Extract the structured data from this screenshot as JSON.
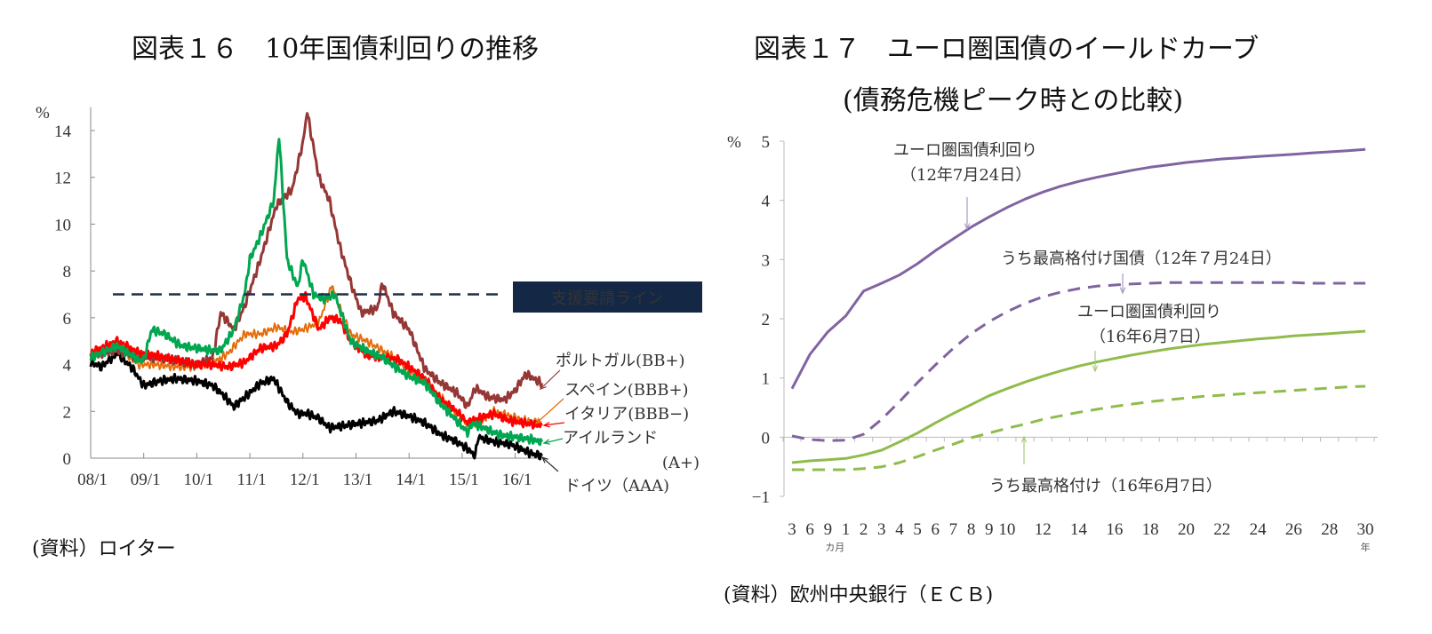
{
  "left_figure": {
    "title": "図表１６　10年国債利回りの推移",
    "source": "(資料）ロイター"
  },
  "right_figure": {
    "title_line1": "図表１７　ユーロ圏国債のイールドカーブ",
    "title_line2": "(債務危機ピーク時との比較)",
    "source": "(資料）欧州中央銀行（ＥＣＢ)"
  },
  "chart_data": [
    {
      "id": "fig16",
      "type": "line",
      "title": "図表１６　10年国債利回りの推移",
      "ylabel": "%",
      "ylim": [
        0,
        15
      ],
      "yticks": [
        0,
        2,
        4,
        6,
        8,
        10,
        12,
        14
      ],
      "xlim": [
        2008.0,
        2016.8
      ],
      "xticks": [
        2008,
        2009,
        2010,
        2011,
        2012,
        2013,
        2014,
        2015,
        2016
      ],
      "xtick_labels": [
        "08/1",
        "09/1",
        "10/1",
        "11/1",
        "12/1",
        "13/1",
        "14/1",
        "15/1",
        "16/1"
      ],
      "grid": false,
      "reference_line": {
        "value": 7,
        "label": "支援要請ライン",
        "style": "dashed",
        "color": "#1f3050"
      },
      "series": [
        {
          "name": "ポルトガル(BB+)",
          "color": "#953735",
          "x": [
            2008.0,
            2008.5,
            2008.9,
            2009.2,
            2009.6,
            2010.0,
            2010.3,
            2010.45,
            2010.7,
            2010.9,
            2011.2,
            2011.5,
            2011.8,
            2012.0,
            2012.08,
            2012.3,
            2012.5,
            2012.7,
            2012.9,
            2013.1,
            2013.4,
            2013.5,
            2013.7,
            2014.0,
            2014.3,
            2014.6,
            2014.9,
            2015.1,
            2015.25,
            2015.5,
            2015.8,
            2016.0,
            2016.2,
            2016.5
          ],
          "values": [
            4.4,
            4.6,
            4.3,
            4.3,
            4.2,
            4.0,
            4.3,
            6.2,
            5.5,
            6.5,
            8.5,
            10.8,
            11.5,
            13.5,
            14.8,
            12.0,
            11.0,
            9.0,
            7.5,
            6.2,
            6.4,
            7.5,
            6.2,
            5.5,
            3.8,
            3.2,
            2.8,
            2.2,
            3.0,
            2.6,
            2.5,
            2.9,
            3.6,
            3.2
          ]
        },
        {
          "name": "スペイン(BBB+)",
          "color": "#e46c0a",
          "x": [
            2008.0,
            2008.5,
            2008.9,
            2009.2,
            2009.6,
            2010.0,
            2010.4,
            2010.6,
            2010.9,
            2011.2,
            2011.5,
            2011.8,
            2012.0,
            2012.3,
            2012.55,
            2012.7,
            2012.9,
            2013.2,
            2013.5,
            2013.8,
            2014.0,
            2014.3,
            2014.6,
            2014.9,
            2015.1,
            2015.3,
            2015.6,
            2015.9,
            2016.2,
            2016.5
          ],
          "values": [
            4.3,
            4.8,
            4.0,
            4.0,
            3.9,
            3.9,
            4.2,
            4.5,
            5.3,
            5.3,
            5.6,
            5.4,
            5.5,
            5.8,
            7.4,
            6.4,
            5.3,
            5.0,
            4.6,
            4.2,
            3.7,
            3.3,
            2.6,
            1.9,
            1.5,
            1.5,
            2.0,
            1.8,
            1.6,
            1.5
          ]
        },
        {
          "name": "イタリア(BBB−)",
          "color": "#ff0000",
          "x": [
            2008.0,
            2008.5,
            2008.9,
            2009.2,
            2009.6,
            2010.0,
            2010.3,
            2010.6,
            2010.9,
            2011.2,
            2011.5,
            2011.7,
            2011.9,
            2012.05,
            2012.3,
            2012.5,
            2012.7,
            2012.9,
            2013.2,
            2013.5,
            2013.8,
            2014.0,
            2014.3,
            2014.6,
            2014.9,
            2015.1,
            2015.3,
            2015.6,
            2015.9,
            2016.2,
            2016.5
          ],
          "values": [
            4.5,
            5.0,
            4.5,
            4.4,
            4.2,
            4.0,
            4.0,
            3.9,
            4.1,
            4.7,
            4.8,
            5.3,
            6.8,
            6.9,
            5.5,
            6.0,
            5.9,
            5.0,
            4.4,
            4.3,
            4.2,
            3.9,
            3.4,
            2.5,
            2.0,
            1.5,
            1.7,
            1.9,
            1.6,
            1.5,
            1.4
          ]
        },
        {
          "name": "アイルランド(A+)",
          "color": "#00a650",
          "x": [
            2008.0,
            2008.5,
            2008.9,
            2009.0,
            2009.15,
            2009.4,
            2009.7,
            2010.0,
            2010.3,
            2010.45,
            2010.7,
            2010.9,
            2011.0,
            2011.2,
            2011.45,
            2011.55,
            2011.7,
            2011.9,
            2012.0,
            2012.2,
            2012.4,
            2012.6,
            2012.9,
            2013.2,
            2013.5,
            2013.8,
            2014.0,
            2014.3,
            2014.6,
            2014.9,
            2015.1,
            2015.2,
            2015.4,
            2015.7,
            2016.0,
            2016.3,
            2016.5
          ],
          "values": [
            4.3,
            4.8,
            4.2,
            4.2,
            5.5,
            5.3,
            4.8,
            4.7,
            4.6,
            4.6,
            5.5,
            7.0,
            8.5,
            9.5,
            11.0,
            13.8,
            8.5,
            7.3,
            8.5,
            7.0,
            6.8,
            7.0,
            5.0,
            4.6,
            4.3,
            3.8,
            3.5,
            3.2,
            2.3,
            1.6,
            1.1,
            1.5,
            1.3,
            1.0,
            0.9,
            0.8,
            0.7
          ]
        },
        {
          "name": "ドイツ(AAA)",
          "color": "#000000",
          "x": [
            2008.0,
            2008.2,
            2008.5,
            2008.8,
            2009.0,
            2009.3,
            2009.6,
            2010.0,
            2010.3,
            2010.5,
            2010.7,
            2010.9,
            2011.2,
            2011.45,
            2011.7,
            2011.9,
            2012.1,
            2012.3,
            2012.5,
            2012.8,
            2013.1,
            2013.4,
            2013.7,
            2014.0,
            2014.3,
            2014.6,
            2014.9,
            2015.1,
            2015.25,
            2015.3,
            2015.6,
            2015.9,
            2016.1,
            2016.3,
            2016.5
          ],
          "values": [
            4.1,
            3.9,
            4.5,
            3.8,
            3.1,
            3.3,
            3.4,
            3.3,
            3.1,
            2.7,
            2.2,
            2.6,
            3.2,
            3.4,
            2.4,
            1.9,
            1.9,
            1.7,
            1.3,
            1.4,
            1.5,
            1.6,
            2.0,
            1.8,
            1.5,
            1.0,
            0.7,
            0.4,
            0.1,
            0.9,
            0.7,
            0.6,
            0.4,
            0.2,
            0.1
          ]
        }
      ],
      "labels": [
        {
          "series": "ポルトガル(BB+)",
          "text": "ポルトガル(BB+)"
        },
        {
          "series": "スペイン(BBB+)",
          "text": "スペイン(BBB+)"
        },
        {
          "series": "イタリア(BBB−)",
          "text": "イタリア(BBB−)"
        },
        {
          "series": "アイルランド(A+)",
          "text": "アイルランド",
          "text2": "(A+)"
        },
        {
          "series": "ドイツ(AAA)",
          "text": "ドイツ（AAA)"
        }
      ]
    },
    {
      "id": "fig17",
      "type": "line",
      "title": "図表１７　ユーロ圏国債のイールドカーブ（債務危機ピーク時との比較）",
      "ylabel": "%",
      "ylim": [
        -1,
        5
      ],
      "yticks": [
        -1,
        0,
        1,
        2,
        3,
        4,
        5
      ],
      "grid": false,
      "categories": [
        "3カ月",
        "6カ月",
        "9カ月",
        "1",
        "2",
        "3",
        "4",
        "5",
        "6",
        "7",
        "8",
        "9",
        "10",
        "11",
        "12",
        "13",
        "14",
        "15",
        "16",
        "17",
        "18",
        "19",
        "20",
        "21",
        "22",
        "23",
        "24",
        "25",
        "26",
        "27",
        "28",
        "29",
        "30"
      ],
      "tick_labels": [
        "3",
        "6",
        "9",
        "1",
        "2",
        "3",
        "4",
        "5",
        "6",
        "7",
        "8",
        "9",
        "10",
        "",
        "12",
        "",
        "14",
        "",
        "16",
        "",
        "18",
        "",
        "20",
        "",
        "22",
        "",
        "24",
        "",
        "26",
        "",
        "28",
        "",
        "30"
      ],
      "x_unit_months": "カ月",
      "x_unit_years": "年",
      "series": [
        {
          "name": "ユーロ圏国債利回り（12年7月24日）",
          "color": "#8064a2",
          "dash": false,
          "values": [
            0.82,
            1.4,
            1.78,
            2.05,
            2.47,
            2.6,
            2.74,
            2.93,
            3.15,
            3.35,
            3.55,
            3.72,
            3.88,
            4.02,
            4.14,
            4.24,
            4.32,
            4.39,
            4.45,
            4.51,
            4.56,
            4.6,
            4.64,
            4.67,
            4.7,
            4.72,
            4.74,
            4.76,
            4.78,
            4.8,
            4.82,
            4.84,
            4.86
          ]
        },
        {
          "name": "うち最高格付け国債（12年７月24日）",
          "color": "#8064a2",
          "dash": true,
          "values": [
            0.02,
            -0.04,
            -0.06,
            -0.05,
            0.05,
            0.3,
            0.6,
            0.92,
            1.22,
            1.5,
            1.75,
            1.95,
            2.12,
            2.26,
            2.37,
            2.45,
            2.51,
            2.55,
            2.57,
            2.59,
            2.6,
            2.61,
            2.61,
            2.61,
            2.61,
            2.61,
            2.61,
            2.61,
            2.61,
            2.6,
            2.6,
            2.6,
            2.6
          ]
        },
        {
          "name": "ユーロ圏国債利回り（16年6月7日）",
          "color": "#8fbc4b",
          "dash": false,
          "values": [
            -0.43,
            -0.4,
            -0.38,
            -0.36,
            -0.3,
            -0.22,
            -0.08,
            0.07,
            0.24,
            0.4,
            0.55,
            0.7,
            0.82,
            0.93,
            1.03,
            1.12,
            1.2,
            1.27,
            1.33,
            1.39,
            1.44,
            1.49,
            1.53,
            1.57,
            1.6,
            1.63,
            1.66,
            1.68,
            1.71,
            1.73,
            1.75,
            1.77,
            1.79
          ]
        },
        {
          "name": "うち最高格付け（16年6月7日）",
          "color": "#8fbc4b",
          "dash": true,
          "values": [
            -0.55,
            -0.55,
            -0.55,
            -0.55,
            -0.53,
            -0.5,
            -0.43,
            -0.33,
            -0.22,
            -0.12,
            -0.01,
            0.07,
            0.15,
            0.22,
            0.3,
            0.36,
            0.42,
            0.47,
            0.52,
            0.56,
            0.6,
            0.63,
            0.66,
            0.69,
            0.71,
            0.73,
            0.75,
            0.77,
            0.79,
            0.81,
            0.83,
            0.85,
            0.86
          ]
        }
      ],
      "annotations": [
        {
          "series_index": 0,
          "line1": "ユーロ圏国債利回り",
          "line2": "（12年7月24日）"
        },
        {
          "series_index": 1,
          "line1": "うち最高格付け国債（12年７月24日）"
        },
        {
          "series_index": 2,
          "line1": "ユーロ圏国債利回り",
          "line2": "（16年6月7日）"
        },
        {
          "series_index": 3,
          "line1": "うち最高格付け（16年6月7日）"
        }
      ]
    }
  ]
}
